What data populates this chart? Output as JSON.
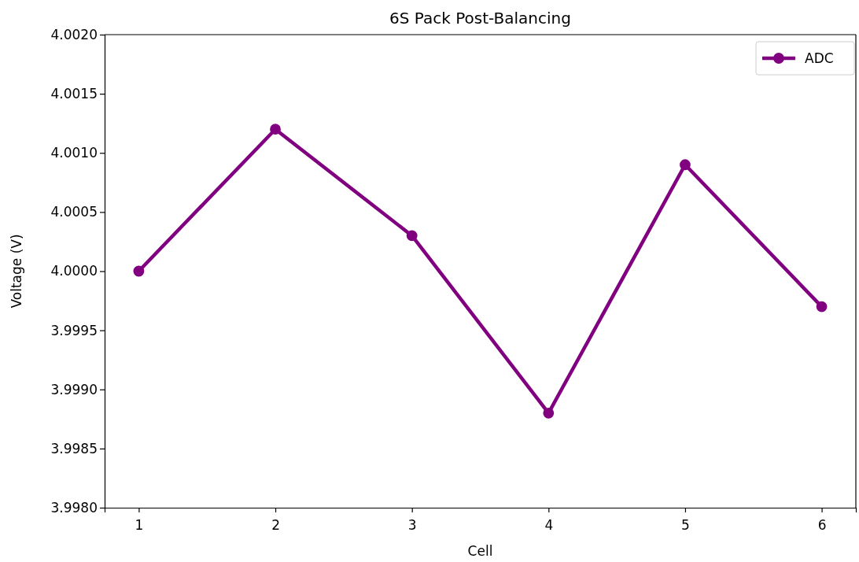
{
  "chart_data": {
    "type": "line",
    "title": "6S Pack Post-Balancing",
    "xlabel": "Cell",
    "ylabel": "Voltage (V)",
    "x": [
      1,
      2,
      3,
      4,
      5,
      6
    ],
    "series": [
      {
        "name": "ADC",
        "color": "#800080",
        "values": [
          4.0,
          4.0012,
          4.0003,
          3.9988,
          4.0009,
          3.9997
        ]
      }
    ],
    "xlim": [
      0.75,
      6.25
    ],
    "xticks": [
      1,
      2,
      3,
      4,
      5,
      6
    ],
    "ylim": [
      3.998,
      4.002
    ],
    "yticks": [
      {
        "value": 3.998,
        "label": "3.9980"
      },
      {
        "value": 3.9985,
        "label": "3.9985"
      },
      {
        "value": 3.999,
        "label": "3.9990"
      },
      {
        "value": 3.9995,
        "label": "3.9995"
      },
      {
        "value": 4.0,
        "label": "4.0000"
      },
      {
        "value": 4.0005,
        "label": "4.0005"
      },
      {
        "value": 4.001,
        "label": "4.0010"
      },
      {
        "value": 4.0015,
        "label": "4.0015"
      },
      {
        "value": 4.002,
        "label": "4.0020"
      }
    ],
    "legend": "top right",
    "marker": "circle",
    "line_style": "solid",
    "grid": false
  }
}
